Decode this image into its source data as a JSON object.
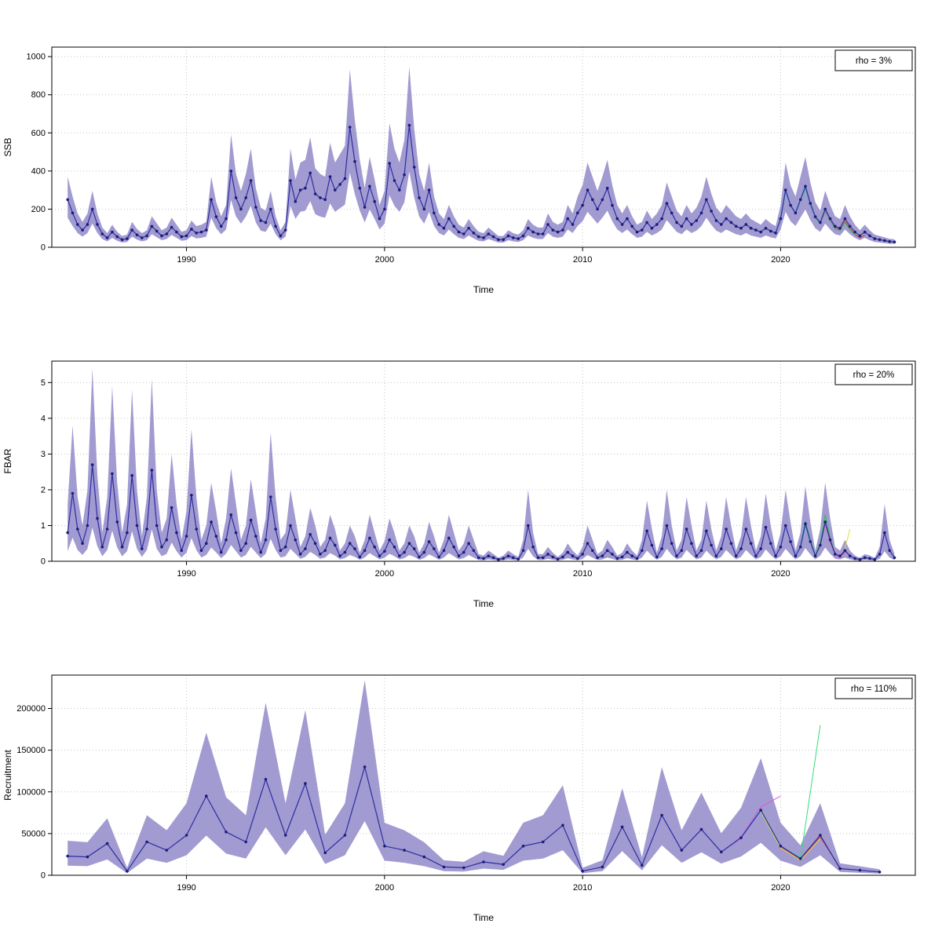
{
  "page": {
    "background": "#ffffff"
  },
  "chart_data": [
    {
      "id": "ssb",
      "type": "line",
      "title": "",
      "xlabel": "Time",
      "ylabel": "SSB",
      "legend_label": "rho = 3%",
      "legend_position": "top-right",
      "grid": true,
      "xlim": [
        1983.2,
        2026.8
      ],
      "ylim": [
        0,
        1050
      ],
      "xticks": [
        1990,
        2000,
        2010,
        2020
      ],
      "yticks": [
        0,
        200,
        400,
        600,
        800,
        1000
      ],
      "x_start": 1984,
      "x_step": 0.25,
      "band": {
        "lower_factor": 0.62,
        "upper_factor": 1.48,
        "color": "#9189c9",
        "opacity": 0.85
      },
      "base": {
        "name": "estimate",
        "color": "#2d2da0",
        "point_color": "#1c1c78",
        "show_points": true,
        "values": [
          250,
          180,
          120,
          90,
          120,
          200,
          120,
          70,
          50,
          80,
          55,
          40,
          45,
          90,
          65,
          50,
          60,
          110,
          85,
          60,
          70,
          105,
          80,
          55,
          60,
          95,
          75,
          80,
          90,
          250,
          160,
          110,
          150,
          400,
          260,
          200,
          260,
          350,
          210,
          140,
          130,
          200,
          110,
          60,
          90,
          350,
          240,
          300,
          310,
          390,
          280,
          260,
          250,
          370,
          300,
          330,
          360,
          630,
          450,
          310,
          210,
          320,
          240,
          150,
          200,
          440,
          350,
          300,
          380,
          640,
          420,
          260,
          200,
          300,
          180,
          120,
          100,
          150,
          110,
          80,
          70,
          100,
          75,
          55,
          50,
          70,
          55,
          40,
          40,
          60,
          50,
          45,
          60,
          100,
          80,
          70,
          70,
          120,
          90,
          80,
          90,
          150,
          120,
          180,
          220,
          300,
          250,
          200,
          250,
          310,
          220,
          150,
          120,
          150,
          110,
          80,
          90,
          130,
          100,
          120,
          150,
          230,
          180,
          130,
          110,
          150,
          120,
          140,
          180,
          250,
          190,
          140,
          120,
          150,
          130,
          110,
          100,
          120,
          100,
          90,
          80,
          100,
          85,
          75,
          150,
          300,
          220,
          180,
          250,
          320,
          230,
          160,
          130,
          200,
          150,
          110,
          100,
          150,
          110,
          80,
          60,
          80,
          60,
          45,
          40,
          35,
          30,
          28
        ]
      },
      "peels": [
        {
          "name": "red",
          "color": "#dd3333",
          "x_start": 2021,
          "x_step": 0.25,
          "values": [
            245,
            312,
            224,
            156,
            126,
            192,
            142,
            100,
            92,
            136,
            96,
            68,
            50,
            64
          ]
        },
        {
          "name": "green",
          "color": "#33bb55",
          "x_start": 2020,
          "x_step": 0.25,
          "values": [
            148,
            294,
            216,
            176,
            244,
            310,
            224,
            154,
            124,
            188,
            140,
            97,
            88,
            130,
            92,
            66
          ]
        },
        {
          "name": "cyan",
          "color": "#2ad4d4",
          "x_start": 2019.5,
          "x_step": 0.25,
          "values": [
            84,
            74,
            148,
            296,
            218,
            177,
            246,
            314,
            226,
            156
          ]
        },
        {
          "name": "magenta",
          "color": "#dd55dd",
          "x_start": 2022,
          "x_step": 0.25,
          "values": [
            128,
            196,
            147,
            108,
            96,
            144,
            104,
            76
          ]
        },
        {
          "name": "yellow",
          "color": "#dede3a",
          "x_start": 2023,
          "x_step": 0.25,
          "values": [
            98,
            146,
            108,
            78,
            58,
            76
          ]
        }
      ]
    },
    {
      "id": "fbar",
      "type": "line",
      "title": "",
      "xlabel": "Time",
      "ylabel": "FBAR",
      "legend_label": "rho = 20%",
      "legend_position": "top-right",
      "grid": true,
      "xlim": [
        1983.2,
        2026.8
      ],
      "ylim": [
        0,
        5.6
      ],
      "xticks": [
        1990,
        2000,
        2010,
        2020
      ],
      "yticks": [
        0,
        1,
        2,
        3,
        4,
        5
      ],
      "x_start": 1984,
      "x_step": 0.25,
      "band": {
        "lower_factor": 0.35,
        "upper_factor": 2.0,
        "color": "#9189c9",
        "opacity": 0.85
      },
      "base": {
        "name": "estimate",
        "color": "#2d2da0",
        "point_color": "#1c1c78",
        "show_points": true,
        "values": [
          0.8,
          1.9,
          0.9,
          0.5,
          1.0,
          2.7,
          1.2,
          0.4,
          0.9,
          2.45,
          1.1,
          0.4,
          0.8,
          2.4,
          1.0,
          0.35,
          0.9,
          2.55,
          1.0,
          0.4,
          0.6,
          1.5,
          0.8,
          0.3,
          0.7,
          1.85,
          0.9,
          0.3,
          0.5,
          1.1,
          0.7,
          0.25,
          0.6,
          1.3,
          0.8,
          0.3,
          0.5,
          1.15,
          0.7,
          0.25,
          0.6,
          1.8,
          0.9,
          0.3,
          0.4,
          1.0,
          0.6,
          0.2,
          0.35,
          0.75,
          0.5,
          0.2,
          0.3,
          0.65,
          0.45,
          0.15,
          0.25,
          0.5,
          0.35,
          0.12,
          0.3,
          0.65,
          0.4,
          0.15,
          0.28,
          0.6,
          0.4,
          0.15,
          0.25,
          0.5,
          0.35,
          0.12,
          0.25,
          0.55,
          0.35,
          0.12,
          0.3,
          0.65,
          0.4,
          0.15,
          0.25,
          0.5,
          0.3,
          0.1,
          0.08,
          0.15,
          0.1,
          0.05,
          0.08,
          0.15,
          0.1,
          0.06,
          0.3,
          1.0,
          0.4,
          0.1,
          0.1,
          0.2,
          0.12,
          0.06,
          0.12,
          0.25,
          0.15,
          0.08,
          0.2,
          0.5,
          0.3,
          0.1,
          0.15,
          0.3,
          0.2,
          0.08,
          0.12,
          0.25,
          0.15,
          0.08,
          0.3,
          0.85,
          0.45,
          0.12,
          0.35,
          1.0,
          0.5,
          0.15,
          0.3,
          0.9,
          0.5,
          0.15,
          0.3,
          0.85,
          0.45,
          0.15,
          0.35,
          0.9,
          0.5,
          0.15,
          0.35,
          0.9,
          0.5,
          0.15,
          0.35,
          0.95,
          0.5,
          0.15,
          0.4,
          1.0,
          0.55,
          0.15,
          0.4,
          1.05,
          0.55,
          0.15,
          0.45,
          1.1,
          0.6,
          0.2,
          0.15,
          0.3,
          0.15,
          0.08,
          0.05,
          0.1,
          0.08,
          0.05,
          0.2,
          0.8,
          0.3,
          0.1
        ]
      },
      "peels": [
        {
          "name": "green",
          "color": "#33bb55",
          "x_start": 2021,
          "x_step": 0.25,
          "values": [
            0.42,
            1.12,
            0.6,
            0.18,
            0.52,
            1.3,
            0.66,
            0.2
          ]
        },
        {
          "name": "cyan",
          "color": "#2ad4d4",
          "x_start": 2020,
          "x_step": 0.25,
          "values": [
            0.4,
            1.0,
            0.54,
            0.14,
            0.38,
            1.02,
            0.53,
            0.13
          ]
        },
        {
          "name": "red",
          "color": "#dd3333",
          "x_start": 2022,
          "x_step": 0.25,
          "values": [
            0.46,
            1.06,
            0.56,
            0.18,
            0.13,
            0.26
          ]
        },
        {
          "name": "magenta",
          "color": "#dd55dd",
          "x_start": 2021.5,
          "x_step": 0.25,
          "values": [
            0.56,
            0.16,
            0.44,
            1.08,
            0.6,
            0.18,
            0.1
          ]
        },
        {
          "name": "yellow",
          "color": "#dede3a",
          "x_start": 2023.25,
          "x_step": 0.25,
          "values": [
            0.35,
            0.9
          ]
        }
      ]
    },
    {
      "id": "recruitment",
      "type": "line",
      "title": "",
      "xlabel": "Time",
      "ylabel": "Recruitment",
      "legend_label": "rho = 110%",
      "legend_position": "top-right",
      "grid": true,
      "xlim": [
        1983.2,
        2026.8
      ],
      "ylim": [
        0,
        240000
      ],
      "xticks": [
        1990,
        2000,
        2010,
        2020
      ],
      "yticks": [
        0,
        50000,
        100000,
        150000,
        200000
      ],
      "x_start": 1984,
      "x_step": 1,
      "band": {
        "lower_factor": 0.5,
        "upper_factor": 1.8,
        "color": "#9189c9",
        "opacity": 0.85
      },
      "base": {
        "name": "estimate",
        "color": "#2d2da0",
        "point_color": "#1c1c78",
        "show_points": true,
        "values": [
          23000,
          22000,
          38000,
          5000,
          40000,
          30000,
          48000,
          95000,
          52000,
          40000,
          115000,
          48000,
          110000,
          27000,
          48000,
          130000,
          35000,
          30000,
          22000,
          10000,
          9000,
          16000,
          13000,
          35000,
          40000,
          60000,
          5000,
          10000,
          58000,
          12000,
          72000,
          30000,
          55000,
          28000,
          45000,
          78000,
          35000,
          20000,
          48000,
          8000,
          6000,
          4000
        ]
      },
      "peels": [
        {
          "name": "magenta",
          "color": "#dd55dd",
          "x_start": 2017,
          "x_step": 1,
          "values": [
            28000,
            46000,
            82000,
            95000
          ]
        },
        {
          "name": "green",
          "color": "#33dd77",
          "x_start": 2019,
          "x_step": 1,
          "values": [
            78000,
            35000,
            20000,
            180000
          ]
        },
        {
          "name": "cyan",
          "color": "#2ad4d4",
          "x_start": 2018,
          "x_step": 1,
          "values": [
            45000,
            77000,
            34000,
            22000
          ]
        },
        {
          "name": "red",
          "color": "#dd3333",
          "x_start": 2020,
          "x_step": 1,
          "values": [
            34000,
            19000,
            46000,
            9000
          ]
        },
        {
          "name": "yellow",
          "color": "#dede3a",
          "x_start": 2019,
          "x_step": 1,
          "values": [
            76000,
            33000,
            18000,
            44000
          ]
        }
      ]
    }
  ]
}
